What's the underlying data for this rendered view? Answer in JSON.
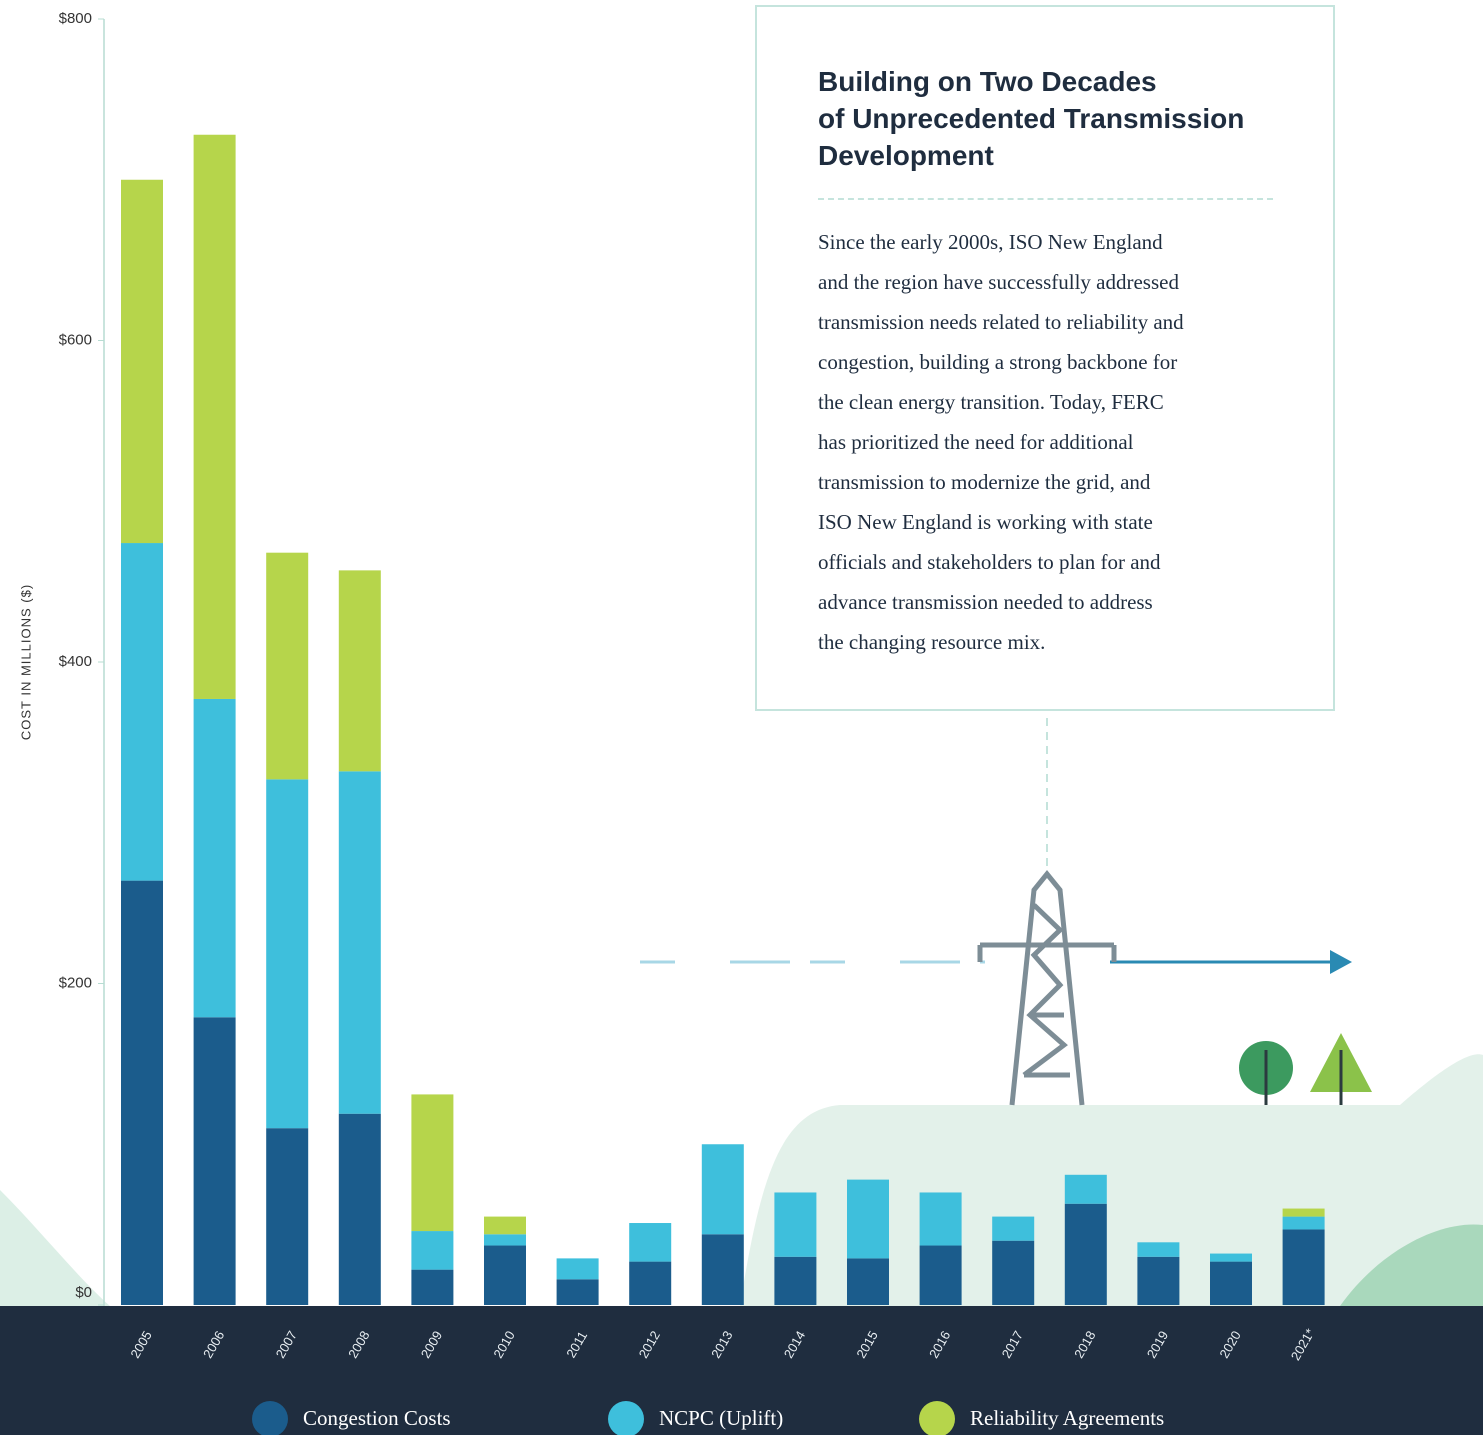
{
  "chart_data": {
    "type": "stacked-bar",
    "y_label": "COST IN MILLIONS ($)",
    "categories": [
      "2005",
      "2006",
      "2007",
      "2008",
      "2009",
      "2010",
      "2011",
      "2012",
      "2013",
      "2014",
      "2015",
      "2016",
      "2017",
      "2018",
      "2019",
      "2020",
      "2021*"
    ],
    "series": [
      {
        "name": "Congestion Costs",
        "color": "#1b5c8c",
        "values": [
          264,
          179,
          110,
          119,
          22,
          37,
          16,
          27,
          44,
          30,
          29,
          37,
          40,
          63,
          30,
          27,
          47
        ]
      },
      {
        "name": "NCPC (Uplift)",
        "color": "#3ebfdc",
        "values": [
          210,
          198,
          217,
          213,
          24,
          7,
          13,
          24,
          56,
          40,
          49,
          33,
          15,
          18,
          9,
          5,
          8
        ]
      },
      {
        "name": "Reliability Agreements",
        "color": "#b6d54b",
        "values": [
          226,
          351,
          141,
          125,
          85,
          11,
          0,
          0,
          0,
          0,
          0,
          0,
          0,
          0,
          0,
          0,
          5
        ]
      }
    ],
    "ylim": [
      0,
      800
    ],
    "yticks": [
      {
        "value": 0,
        "label": "$0"
      },
      {
        "value": 200,
        "label": "$200"
      },
      {
        "value": 400,
        "label": "$400"
      },
      {
        "value": 600,
        "label": "$600"
      },
      {
        "value": 800,
        "label": "$800"
      }
    ]
  },
  "annotation": {
    "title_lines": [
      "Building on Two Decades",
      "of Unprecedented Transmission",
      "Development"
    ],
    "body_lines": [
      "Since the early 2000s, ISO New England",
      "and the region have successfully addressed",
      "transmission needs related to reliability and",
      "congestion, building a strong backbone for",
      "the clean energy transition. Today, FERC",
      "has prioritized the need for additional",
      "transmission to modernize the grid, and",
      "ISO New England is working with state",
      "officials and stakeholders to plan for and",
      "advance transmission needed to address",
      "the changing resource mix."
    ]
  }
}
